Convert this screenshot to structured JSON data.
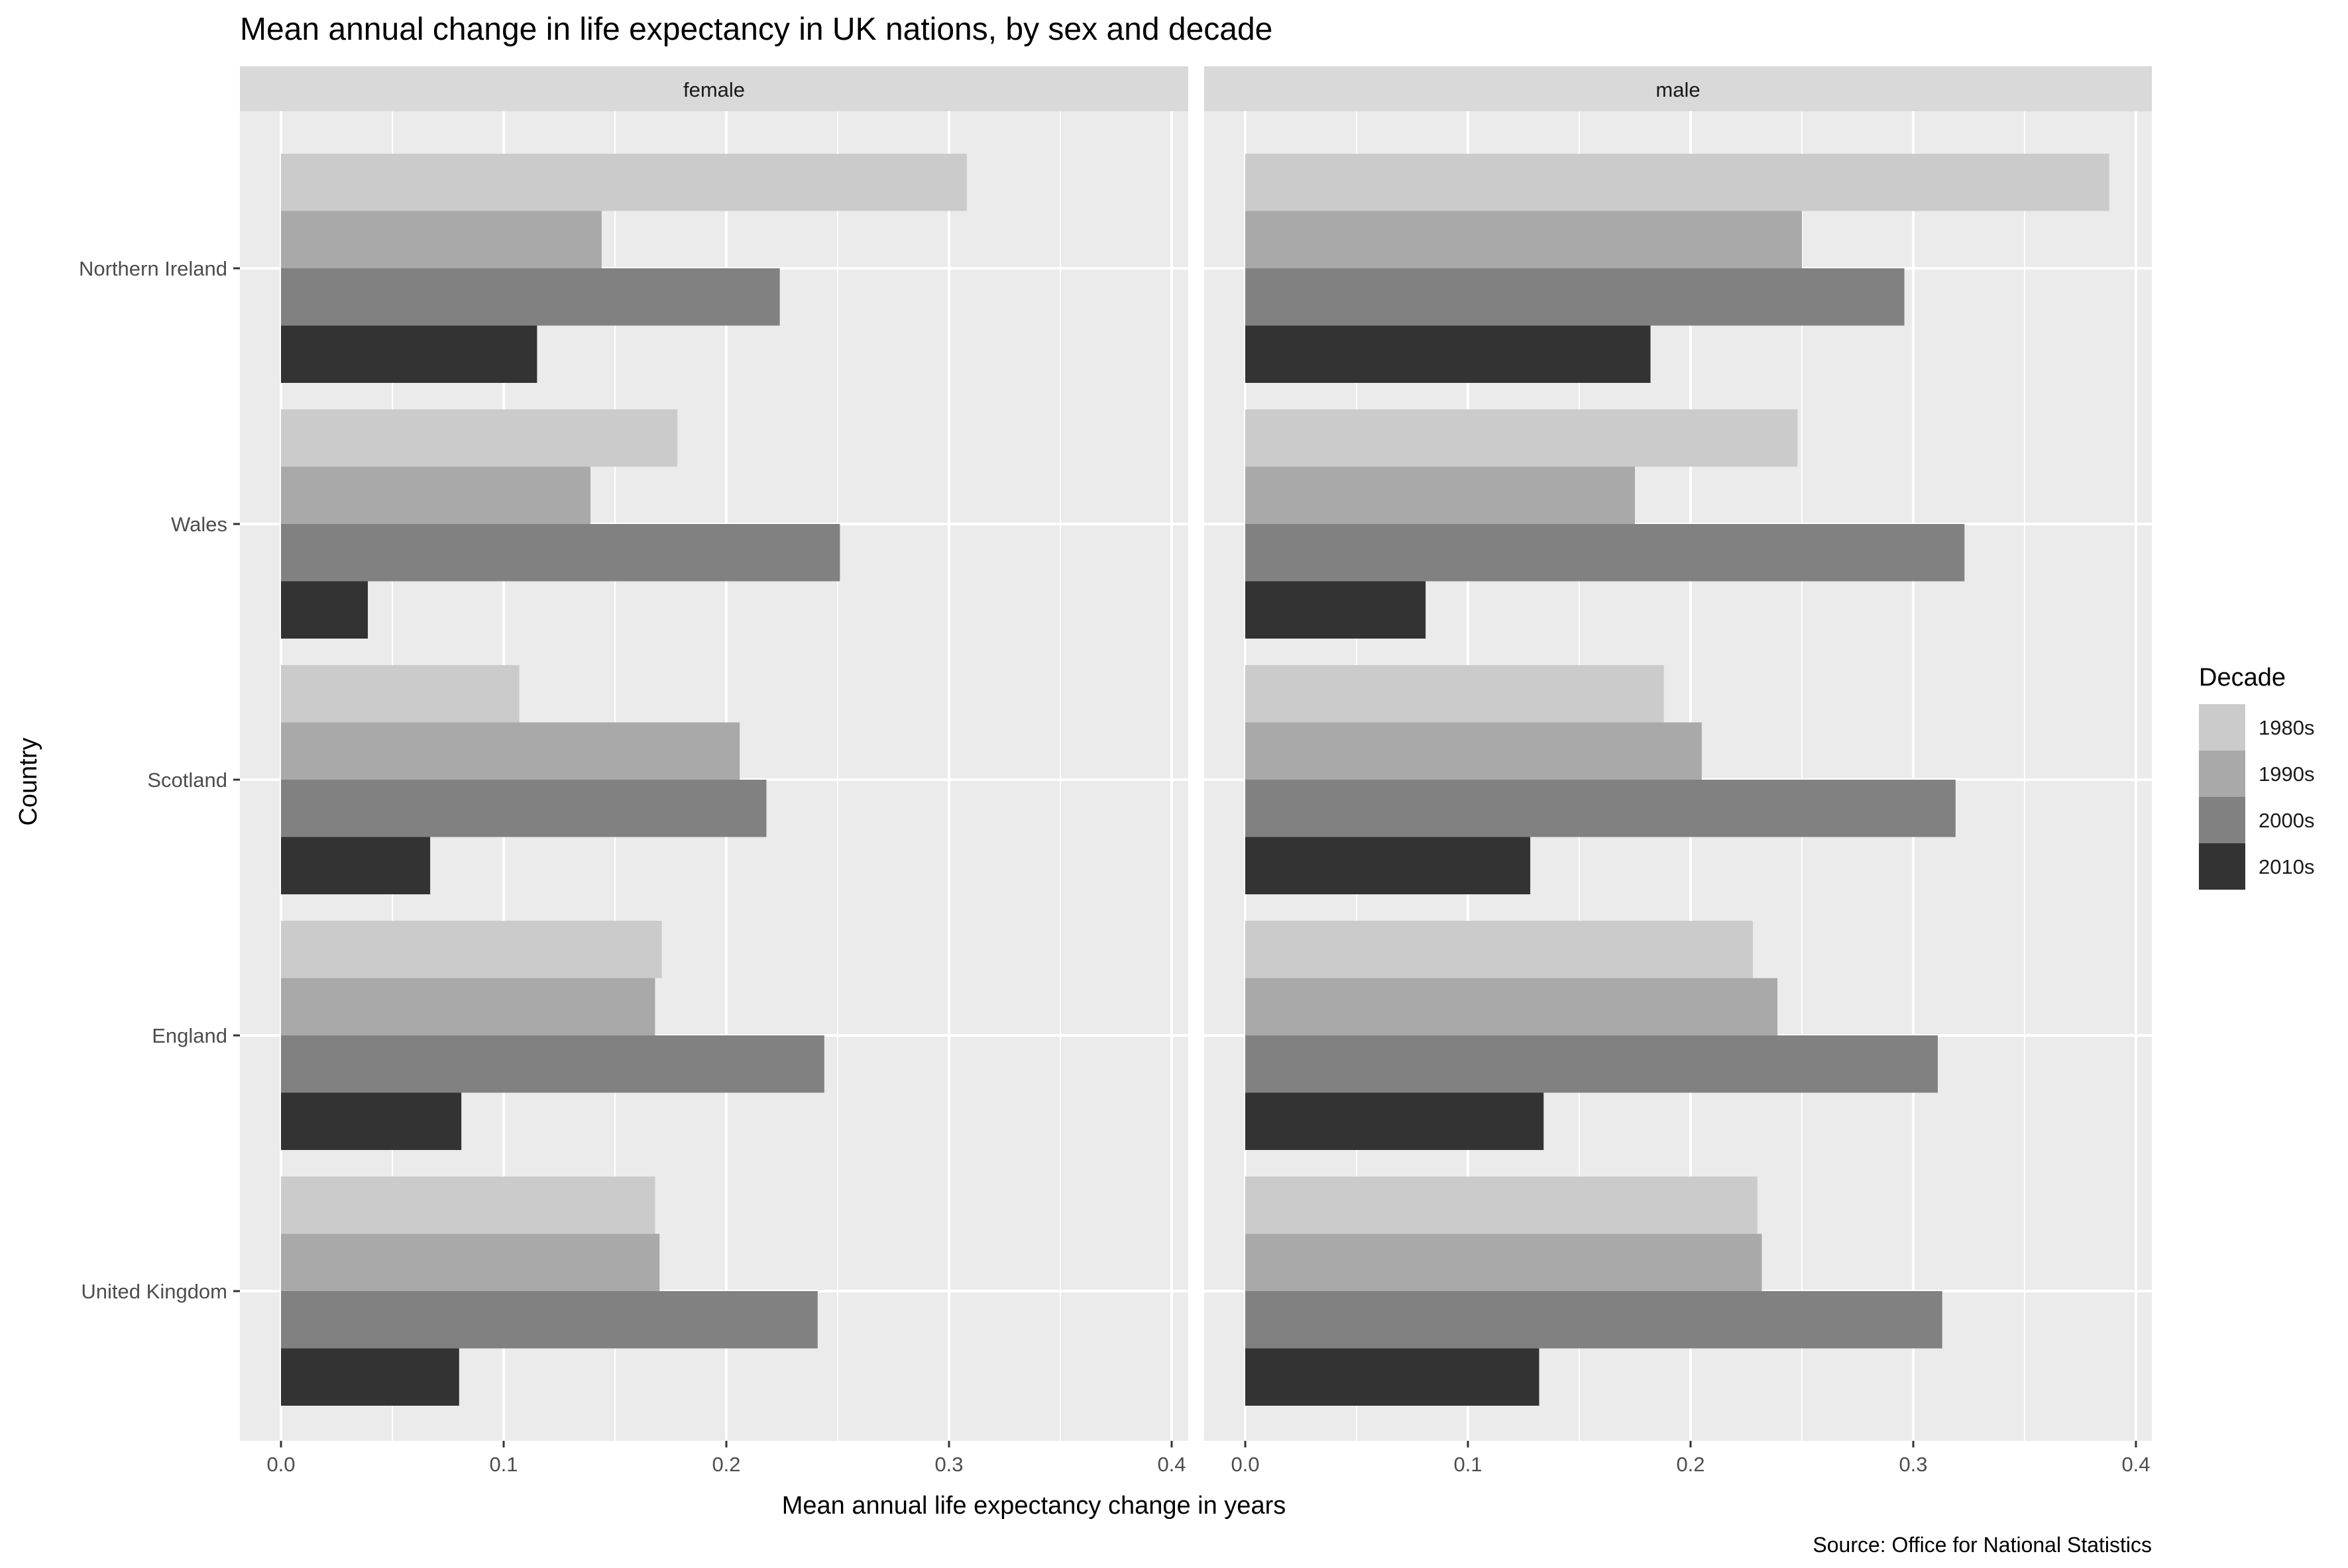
{
  "chart_data": {
    "type": "bar",
    "orientation": "horizontal",
    "title": "Mean annual change in life expectancy in UK nations, by sex and decade",
    "xlabel": "Mean annual life expectancy change in years",
    "ylabel": "Country",
    "caption": "Source: Office for National Statistics",
    "xlim": [
      0,
      0.4
    ],
    "x_ticks": [
      "0.0",
      "0.1",
      "0.2",
      "0.3",
      "0.4"
    ],
    "grid": true,
    "legend": {
      "title": "Decade",
      "position": "right"
    },
    "categories": [
      "Northern Ireland",
      "Wales",
      "Scotland",
      "England",
      "United Kingdom"
    ],
    "series": [
      {
        "name": "1980s",
        "color": "#cbcbcb"
      },
      {
        "name": "1990s",
        "color": "#a9a9a9"
      },
      {
        "name": "2000s",
        "color": "#818181"
      },
      {
        "name": "2010s",
        "color": "#333333"
      }
    ],
    "facets": [
      {
        "label": "female",
        "values": {
          "1980s": [
            0.308,
            0.178,
            0.107,
            0.171,
            0.168
          ],
          "1990s": [
            0.144,
            0.139,
            0.206,
            0.168,
            0.17
          ],
          "2000s": [
            0.224,
            0.251,
            0.218,
            0.244,
            0.241
          ],
          "2010s": [
            0.115,
            0.039,
            0.067,
            0.081,
            0.08
          ]
        }
      },
      {
        "label": "male",
        "values": {
          "1980s": [
            0.388,
            0.248,
            0.188,
            0.228,
            0.23
          ],
          "1990s": [
            0.25,
            0.175,
            0.205,
            0.239,
            0.232
          ],
          "2000s": [
            0.296,
            0.323,
            0.319,
            0.311,
            0.313
          ],
          "2010s": [
            0.182,
            0.081,
            0.128,
            0.134,
            0.132
          ]
        }
      }
    ]
  }
}
